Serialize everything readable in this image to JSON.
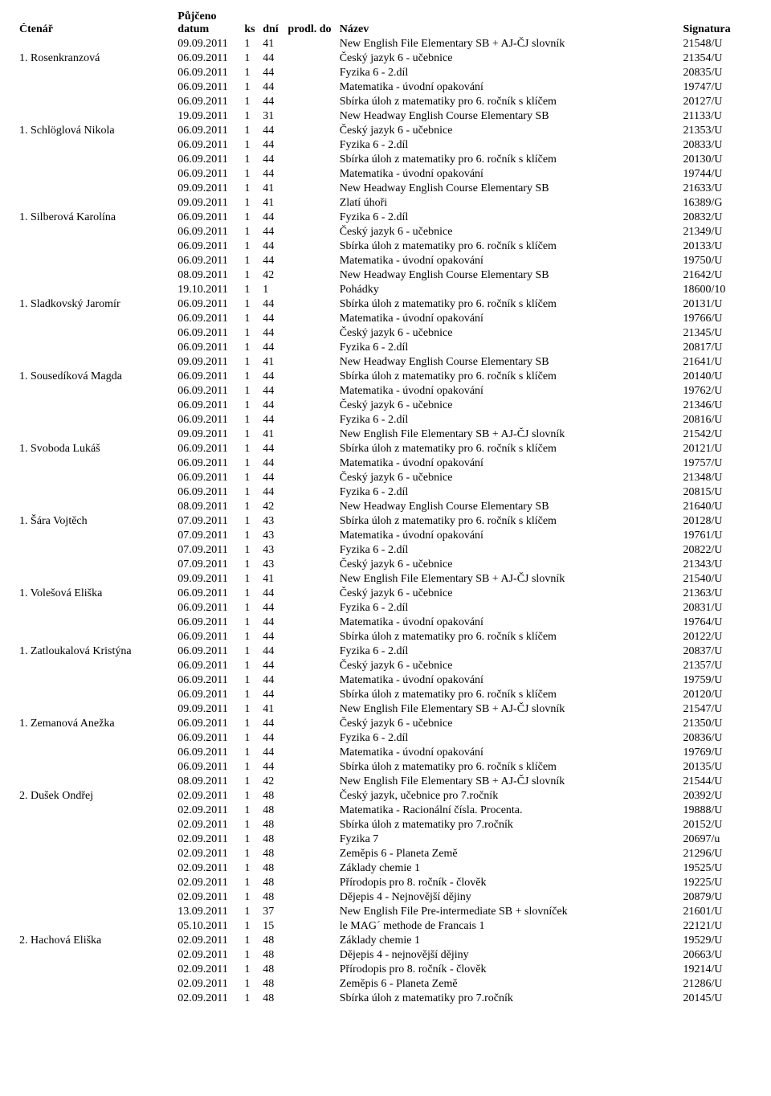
{
  "headers": {
    "ctenar": "Čtenář",
    "pujceno": "Půjčeno",
    "datum": "datum",
    "ks": "ks",
    "dni": "dní",
    "prodl": "prodl. do",
    "nazev": "Název",
    "signatura": "Signatura"
  },
  "rows": [
    {
      "ctenar": "",
      "datum": "09.09.2011",
      "ks": "1",
      "dni": "41",
      "prodl": "",
      "nazev": "New English File Elementary SB + AJ-ČJ slovník",
      "sig": "21548/U"
    },
    {
      "ctenar": "1.  Rosenkranzová",
      "datum": "06.09.2011",
      "ks": "1",
      "dni": "44",
      "prodl": "",
      "nazev": "Český jazyk 6 - učebnice",
      "sig": "21354/U"
    },
    {
      "ctenar": "",
      "datum": "06.09.2011",
      "ks": "1",
      "dni": "44",
      "prodl": "",
      "nazev": "Fyzika 6 - 2.díl",
      "sig": "20835/U"
    },
    {
      "ctenar": "",
      "datum": "06.09.2011",
      "ks": "1",
      "dni": "44",
      "prodl": "",
      "nazev": "Matematika - úvodní opakování",
      "sig": "19747/U"
    },
    {
      "ctenar": "",
      "datum": "06.09.2011",
      "ks": "1",
      "dni": "44",
      "prodl": "",
      "nazev": "Sbírka úloh z matematiky pro 6. ročník s klíčem",
      "sig": "20127/U"
    },
    {
      "ctenar": "",
      "datum": "19.09.2011",
      "ks": "1",
      "dni": "31",
      "prodl": "",
      "nazev": "New Headway English Course Elementary SB",
      "sig": "21133/U"
    },
    {
      "ctenar": "1.  Schlöglová Nikola",
      "datum": "06.09.2011",
      "ks": "1",
      "dni": "44",
      "prodl": "",
      "nazev": "Český jazyk 6 - učebnice",
      "sig": "21353/U"
    },
    {
      "ctenar": "",
      "datum": "06.09.2011",
      "ks": "1",
      "dni": "44",
      "prodl": "",
      "nazev": "Fyzika 6 - 2.díl",
      "sig": "20833/U"
    },
    {
      "ctenar": "",
      "datum": "06.09.2011",
      "ks": "1",
      "dni": "44",
      "prodl": "",
      "nazev": "Sbírka úloh z matematiky pro 6. ročník s klíčem",
      "sig": "20130/U"
    },
    {
      "ctenar": "",
      "datum": "06.09.2011",
      "ks": "1",
      "dni": "44",
      "prodl": "",
      "nazev": "Matematika - úvodní opakování",
      "sig": "19744/U"
    },
    {
      "ctenar": "",
      "datum": "09.09.2011",
      "ks": "1",
      "dni": "41",
      "prodl": "",
      "nazev": "New Headway English Course Elementary SB",
      "sig": "21633/U"
    },
    {
      "ctenar": "",
      "datum": "09.09.2011",
      "ks": "1",
      "dni": "41",
      "prodl": "",
      "nazev": "Zlatí úhoři",
      "sig": "16389/G"
    },
    {
      "ctenar": "1.  Silberová Karolína",
      "datum": "06.09.2011",
      "ks": "1",
      "dni": "44",
      "prodl": "",
      "nazev": "Fyzika 6 - 2.díl",
      "sig": "20832/U"
    },
    {
      "ctenar": "",
      "datum": "06.09.2011",
      "ks": "1",
      "dni": "44",
      "prodl": "",
      "nazev": "Český jazyk 6 - učebnice",
      "sig": "21349/U"
    },
    {
      "ctenar": "",
      "datum": "06.09.2011",
      "ks": "1",
      "dni": "44",
      "prodl": "",
      "nazev": "Sbírka úloh z matematiky pro 6. ročník s klíčem",
      "sig": "20133/U"
    },
    {
      "ctenar": "",
      "datum": "06.09.2011",
      "ks": "1",
      "dni": "44",
      "prodl": "",
      "nazev": "Matematika - úvodní opakování",
      "sig": "19750/U"
    },
    {
      "ctenar": "",
      "datum": "08.09.2011",
      "ks": "1",
      "dni": "42",
      "prodl": "",
      "nazev": "New Headway English Course Elementary SB",
      "sig": "21642/U"
    },
    {
      "ctenar": "",
      "datum": "19.10.2011",
      "ks": "1",
      "dni": "1",
      "prodl": "",
      "nazev": "Pohádky",
      "sig": "18600/10"
    },
    {
      "ctenar": "1.  Sladkovský Jaromír",
      "datum": "06.09.2011",
      "ks": "1",
      "dni": "44",
      "prodl": "",
      "nazev": "Sbírka úloh z matematiky pro 6. ročník s klíčem",
      "sig": "20131/U"
    },
    {
      "ctenar": "",
      "datum": "06.09.2011",
      "ks": "1",
      "dni": "44",
      "prodl": "",
      "nazev": "Matematika - úvodní opakování",
      "sig": "19766/U"
    },
    {
      "ctenar": "",
      "datum": "06.09.2011",
      "ks": "1",
      "dni": "44",
      "prodl": "",
      "nazev": "Český jazyk 6 - učebnice",
      "sig": "21345/U"
    },
    {
      "ctenar": "",
      "datum": "06.09.2011",
      "ks": "1",
      "dni": "44",
      "prodl": "",
      "nazev": "Fyzika 6 - 2.díl",
      "sig": "20817/U"
    },
    {
      "ctenar": "",
      "datum": "09.09.2011",
      "ks": "1",
      "dni": "41",
      "prodl": "",
      "nazev": "New Headway English Course Elementary SB",
      "sig": "21641/U"
    },
    {
      "ctenar": "1.  Sousedíková Magda",
      "datum": "06.09.2011",
      "ks": "1",
      "dni": "44",
      "prodl": "",
      "nazev": "Sbírka úloh z matematiky pro 6. ročník s klíčem",
      "sig": "20140/U"
    },
    {
      "ctenar": "",
      "datum": "06.09.2011",
      "ks": "1",
      "dni": "44",
      "prodl": "",
      "nazev": "Matematika - úvodní opakování",
      "sig": "19762/U"
    },
    {
      "ctenar": "",
      "datum": "06.09.2011",
      "ks": "1",
      "dni": "44",
      "prodl": "",
      "nazev": "Český jazyk 6 - učebnice",
      "sig": "21346/U"
    },
    {
      "ctenar": "",
      "datum": "06.09.2011",
      "ks": "1",
      "dni": "44",
      "prodl": "",
      "nazev": "Fyzika 6 - 2.díl",
      "sig": "20816/U"
    },
    {
      "ctenar": "",
      "datum": "09.09.2011",
      "ks": "1",
      "dni": "41",
      "prodl": "",
      "nazev": "New English File Elementary SB + AJ-ČJ slovník",
      "sig": "21542/U"
    },
    {
      "ctenar": "1.  Svoboda Lukáš",
      "datum": "06.09.2011",
      "ks": "1",
      "dni": "44",
      "prodl": "",
      "nazev": "Sbírka úloh z matematiky pro 6. ročník s klíčem",
      "sig": "20121/U"
    },
    {
      "ctenar": "",
      "datum": "06.09.2011",
      "ks": "1",
      "dni": "44",
      "prodl": "",
      "nazev": "Matematika - úvodní opakování",
      "sig": "19757/U"
    },
    {
      "ctenar": "",
      "datum": "06.09.2011",
      "ks": "1",
      "dni": "44",
      "prodl": "",
      "nazev": "Český jazyk 6 - učebnice",
      "sig": "21348/U"
    },
    {
      "ctenar": "",
      "datum": "06.09.2011",
      "ks": "1",
      "dni": "44",
      "prodl": "",
      "nazev": "Fyzika 6 - 2.díl",
      "sig": "20815/U"
    },
    {
      "ctenar": "",
      "datum": "08.09.2011",
      "ks": "1",
      "dni": "42",
      "prodl": "",
      "nazev": "New Headway English Course Elementary SB",
      "sig": "21640/U"
    },
    {
      "ctenar": "1.  Šára Vojtěch",
      "datum": "07.09.2011",
      "ks": "1",
      "dni": "43",
      "prodl": "",
      "nazev": "Sbírka úloh z matematiky pro 6. ročník s klíčem",
      "sig": "20128/U"
    },
    {
      "ctenar": "",
      "datum": "07.09.2011",
      "ks": "1",
      "dni": "43",
      "prodl": "",
      "nazev": "Matematika - úvodní opakování",
      "sig": "19761/U"
    },
    {
      "ctenar": "",
      "datum": "07.09.2011",
      "ks": "1",
      "dni": "43",
      "prodl": "",
      "nazev": "Fyzika 6 - 2.díl",
      "sig": "20822/U"
    },
    {
      "ctenar": "",
      "datum": "07.09.2011",
      "ks": "1",
      "dni": "43",
      "prodl": "",
      "nazev": "Český jazyk 6 - učebnice",
      "sig": "21343/U"
    },
    {
      "ctenar": "",
      "datum": "09.09.2011",
      "ks": "1",
      "dni": "41",
      "prodl": "",
      "nazev": "New English File Elementary SB + AJ-ČJ slovník",
      "sig": "21540/U"
    },
    {
      "ctenar": "1.  Volešová Eliška",
      "datum": "06.09.2011",
      "ks": "1",
      "dni": "44",
      "prodl": "",
      "nazev": "Český jazyk 6 - učebnice",
      "sig": "21363/U"
    },
    {
      "ctenar": "",
      "datum": "06.09.2011",
      "ks": "1",
      "dni": "44",
      "prodl": "",
      "nazev": "Fyzika 6 - 2.díl",
      "sig": "20831/U"
    },
    {
      "ctenar": "",
      "datum": "06.09.2011",
      "ks": "1",
      "dni": "44",
      "prodl": "",
      "nazev": "Matematika - úvodní opakování",
      "sig": "19764/U"
    },
    {
      "ctenar": "",
      "datum": "06.09.2011",
      "ks": "1",
      "dni": "44",
      "prodl": "",
      "nazev": "Sbírka úloh z matematiky pro 6. ročník s klíčem",
      "sig": "20122/U"
    },
    {
      "ctenar": "1.  Zatloukalová Kristýna",
      "datum": "06.09.2011",
      "ks": "1",
      "dni": "44",
      "prodl": "",
      "nazev": "Fyzika 6 - 2.díl",
      "sig": "20837/U"
    },
    {
      "ctenar": "",
      "datum": "06.09.2011",
      "ks": "1",
      "dni": "44",
      "prodl": "",
      "nazev": "Český jazyk 6 - učebnice",
      "sig": "21357/U"
    },
    {
      "ctenar": "",
      "datum": "06.09.2011",
      "ks": "1",
      "dni": "44",
      "prodl": "",
      "nazev": "Matematika - úvodní opakování",
      "sig": "19759/U"
    },
    {
      "ctenar": "",
      "datum": "06.09.2011",
      "ks": "1",
      "dni": "44",
      "prodl": "",
      "nazev": "Sbírka úloh z matematiky pro 6. ročník s klíčem",
      "sig": "20120/U"
    },
    {
      "ctenar": "",
      "datum": "09.09.2011",
      "ks": "1",
      "dni": "41",
      "prodl": "",
      "nazev": "New English File Elementary SB + AJ-ČJ slovník",
      "sig": "21547/U"
    },
    {
      "ctenar": "1.  Zemanová Anežka",
      "datum": "06.09.2011",
      "ks": "1",
      "dni": "44",
      "prodl": "",
      "nazev": "Český jazyk 6 - učebnice",
      "sig": "21350/U"
    },
    {
      "ctenar": "",
      "datum": "06.09.2011",
      "ks": "1",
      "dni": "44",
      "prodl": "",
      "nazev": "Fyzika 6 - 2.díl",
      "sig": "20836/U"
    },
    {
      "ctenar": "",
      "datum": "06.09.2011",
      "ks": "1",
      "dni": "44",
      "prodl": "",
      "nazev": "Matematika - úvodní opakování",
      "sig": "19769/U"
    },
    {
      "ctenar": "",
      "datum": "06.09.2011",
      "ks": "1",
      "dni": "44",
      "prodl": "",
      "nazev": "Sbírka úloh z matematiky pro 6. ročník s klíčem",
      "sig": "20135/U"
    },
    {
      "ctenar": "",
      "datum": "08.09.2011",
      "ks": "1",
      "dni": "42",
      "prodl": "",
      "nazev": "New English File Elementary SB + AJ-ČJ slovník",
      "sig": "21544/U"
    },
    {
      "ctenar": "2.  Dušek Ondřej",
      "datum": "02.09.2011",
      "ks": "1",
      "dni": "48",
      "prodl": "",
      "nazev": "Český jazyk, učebnice pro 7.ročník",
      "sig": "20392/U"
    },
    {
      "ctenar": "",
      "datum": "02.09.2011",
      "ks": "1",
      "dni": "48",
      "prodl": "",
      "nazev": "Matematika - Racionální čísla. Procenta.",
      "sig": "19888/U"
    },
    {
      "ctenar": "",
      "datum": "02.09.2011",
      "ks": "1",
      "dni": "48",
      "prodl": "",
      "nazev": "Sbírka úloh z matematiky pro 7.ročník",
      "sig": "20152/U"
    },
    {
      "ctenar": "",
      "datum": "02.09.2011",
      "ks": "1",
      "dni": "48",
      "prodl": "",
      "nazev": "Fyzika 7",
      "sig": "20697/u"
    },
    {
      "ctenar": "",
      "datum": "02.09.2011",
      "ks": "1",
      "dni": "48",
      "prodl": "",
      "nazev": "Zeměpis 6 - Planeta Země",
      "sig": "21296/U"
    },
    {
      "ctenar": "",
      "datum": "02.09.2011",
      "ks": "1",
      "dni": "48",
      "prodl": "",
      "nazev": "Základy chemie 1",
      "sig": "19525/U"
    },
    {
      "ctenar": "",
      "datum": "02.09.2011",
      "ks": "1",
      "dni": "48",
      "prodl": "",
      "nazev": "Přírodopis pro 8. ročník - člověk",
      "sig": "19225/U"
    },
    {
      "ctenar": "",
      "datum": "02.09.2011",
      "ks": "1",
      "dni": "48",
      "prodl": "",
      "nazev": "Dějepis 4 - Nejnovější dějiny",
      "sig": "20879/U"
    },
    {
      "ctenar": "",
      "datum": "13.09.2011",
      "ks": "1",
      "dni": "37",
      "prodl": "",
      "nazev": "New English File Pre-intermediate SB + slovníček",
      "sig": "21601/U"
    },
    {
      "ctenar": "",
      "datum": "05.10.2011",
      "ks": "1",
      "dni": "15",
      "prodl": "",
      "nazev": "le MAG´ methode de Francais 1",
      "sig": "22121/U"
    },
    {
      "ctenar": "2.  Hachová Eliška",
      "datum": "02.09.2011",
      "ks": "1",
      "dni": "48",
      "prodl": "",
      "nazev": "Základy chemie 1",
      "sig": "19529/U"
    },
    {
      "ctenar": "",
      "datum": "02.09.2011",
      "ks": "1",
      "dni": "48",
      "prodl": "",
      "nazev": "Dějepis 4 - nejnovější dějiny",
      "sig": "20663/U"
    },
    {
      "ctenar": "",
      "datum": "02.09.2011",
      "ks": "1",
      "dni": "48",
      "prodl": "",
      "nazev": "Přírodopis pro 8. ročník - člověk",
      "sig": "19214/U"
    },
    {
      "ctenar": "",
      "datum": "02.09.2011",
      "ks": "1",
      "dni": "48",
      "prodl": "",
      "nazev": "Zeměpis 6 - Planeta Země",
      "sig": "21286/U"
    },
    {
      "ctenar": "",
      "datum": "02.09.2011",
      "ks": "1",
      "dni": "48",
      "prodl": "",
      "nazev": "Sbírka úloh z matematiky pro 7.ročník",
      "sig": "20145/U"
    }
  ]
}
